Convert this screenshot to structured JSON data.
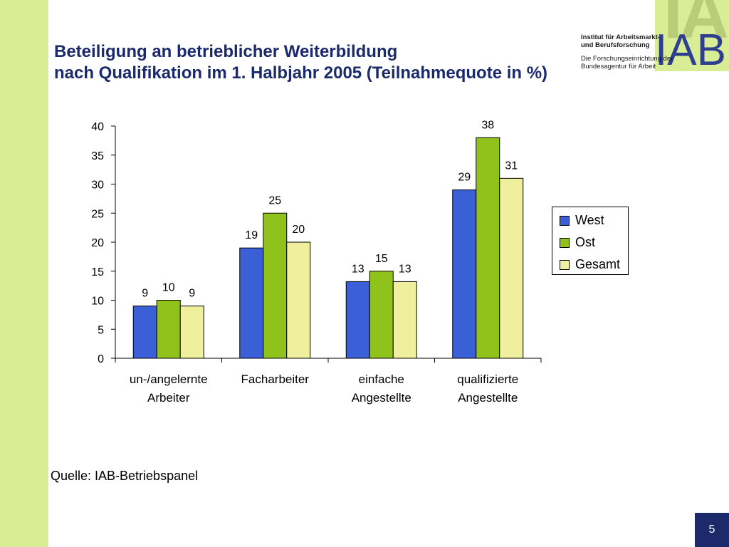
{
  "title_line1": "Beteiligung an betrieblicher Weiterbildung",
  "title_line2": "nach Qualifikation im 1. Halbjahr 2005 (Teilnahmequote in %)",
  "logo": {
    "text": "IAB",
    "bg_letters": "IAB",
    "inst_line1": "Institut für Arbeitsmarkt-",
    "inst_line2": "und Berufsforschung",
    "sub_line1": "Die Forschungseinrichtung der",
    "sub_line2": "Bundesagentur für Arbeit"
  },
  "source": "Quelle: IAB-Betriebspanel",
  "page_number": "5",
  "colors": {
    "west": "#3b5fd6",
    "ost": "#8fc21b",
    "gesamt": "#f0ef9d",
    "left_bar": "#d9ec96",
    "page_box": "#1c2a6b"
  },
  "chart_data": {
    "type": "bar",
    "categories": [
      [
        "un-/angelernte",
        "Arbeiter"
      ],
      [
        "Facharbeiter"
      ],
      [
        "einfache",
        "Angestellte"
      ],
      [
        "qualifizierte",
        "Angestellte"
      ]
    ],
    "series": [
      {
        "name": "West",
        "values": [
          9,
          19,
          13,
          29
        ]
      },
      {
        "name": "Ost",
        "values": [
          10,
          25,
          15,
          38
        ]
      },
      {
        "name": "Gesamt",
        "values": [
          9,
          20,
          13,
          31
        ]
      }
    ],
    "bar_heights": [
      [
        9,
        19,
        13.2,
        29
      ],
      [
        10,
        25,
        15,
        38
      ],
      [
        9,
        20,
        13.2,
        31
      ]
    ],
    "ylim": [
      0,
      40
    ],
    "yticks": [
      0,
      5,
      10,
      15,
      20,
      25,
      30,
      35,
      40
    ],
    "legend_position": "right",
    "grid": false
  }
}
